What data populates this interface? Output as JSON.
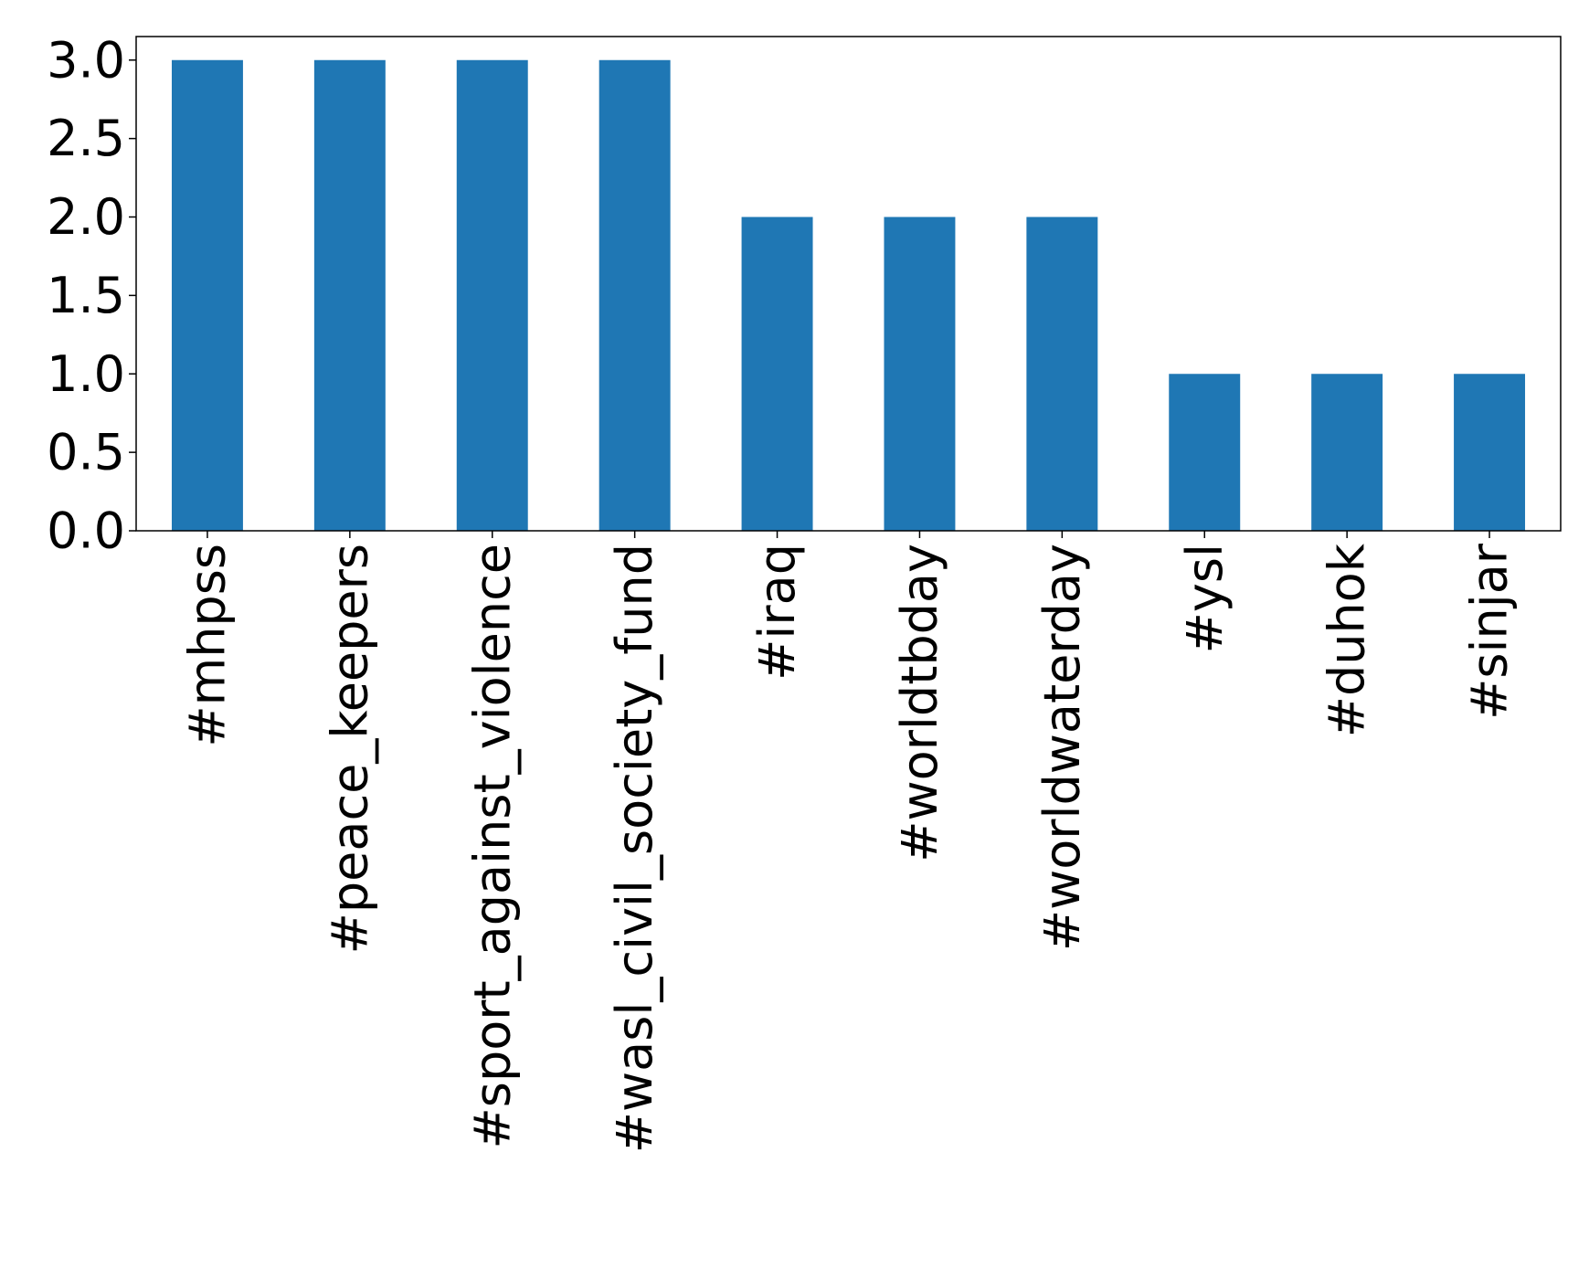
{
  "chart_data": {
    "type": "bar",
    "categories": [
      "#mhpss",
      "#peace_keepers",
      "#sport_against_violence",
      "#wasl_civil_society_fund",
      "#iraq",
      "#worldtbday",
      "#worldwaterday",
      "#ysl",
      "#duhok",
      "#sinjar"
    ],
    "values": [
      3,
      3,
      3,
      3,
      2,
      2,
      2,
      1,
      1,
      1
    ],
    "color": "#1f77b4",
    "ylim": [
      0,
      3.15
    ],
    "yticks": [
      {
        "value": 0,
        "label": "0.0"
      },
      {
        "value": 0.5,
        "label": "0.5"
      },
      {
        "value": 1,
        "label": "1.0"
      },
      {
        "value": 1.5,
        "label": "1.5"
      },
      {
        "value": 2,
        "label": "2.0"
      },
      {
        "value": 2.5,
        "label": "2.5"
      },
      {
        "value": 3,
        "label": "3.0"
      }
    ],
    "grid": false
  }
}
